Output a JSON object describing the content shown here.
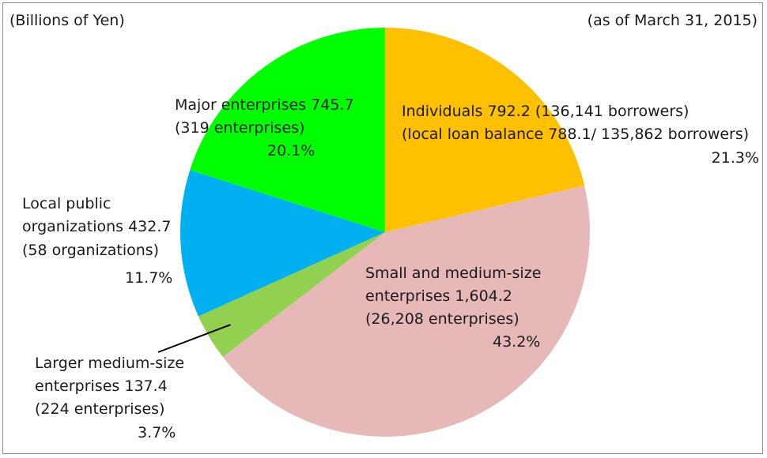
{
  "header": {
    "unit_label": "(Billions of Yen)",
    "date_label": "(as of March 31, 2015)"
  },
  "chart_data": {
    "type": "pie",
    "unit": "Billions of Yen",
    "start_angle_deg": 0,
    "direction": "clockwise",
    "slices": [
      {
        "key": "individuals",
        "value": 792.2,
        "percent": "21.3%",
        "color": "#FFC000",
        "label_lines": [
          "Individuals 792.2 (136,141 borrowers)",
          "(local loan balance 788.1/ 135,862 borrowers)"
        ]
      },
      {
        "key": "sme",
        "value": 1604.2,
        "percent": "43.2%",
        "color": "#E6B9B8",
        "label_lines": [
          "Small and medium-size",
          "enterprises 1,604.2",
          "(26,208 enterprises)"
        ]
      },
      {
        "key": "larger_medium",
        "value": 137.4,
        "percent": "3.7%",
        "color": "#92D050",
        "label_lines": [
          "Larger medium-size",
          "enterprises 137.4",
          "(224 enterprises)"
        ]
      },
      {
        "key": "local_public",
        "value": 432.7,
        "percent": "11.7%",
        "color": "#00B0F0",
        "label_lines": [
          "Local public",
          "organizations 432.7",
          "(58 organizations)"
        ]
      },
      {
        "key": "major",
        "value": 745.7,
        "percent": "20.1%",
        "color": "#00FF00",
        "label_lines": [
          "Major enterprises 745.7",
          "(319 enterprises)"
        ]
      }
    ]
  }
}
